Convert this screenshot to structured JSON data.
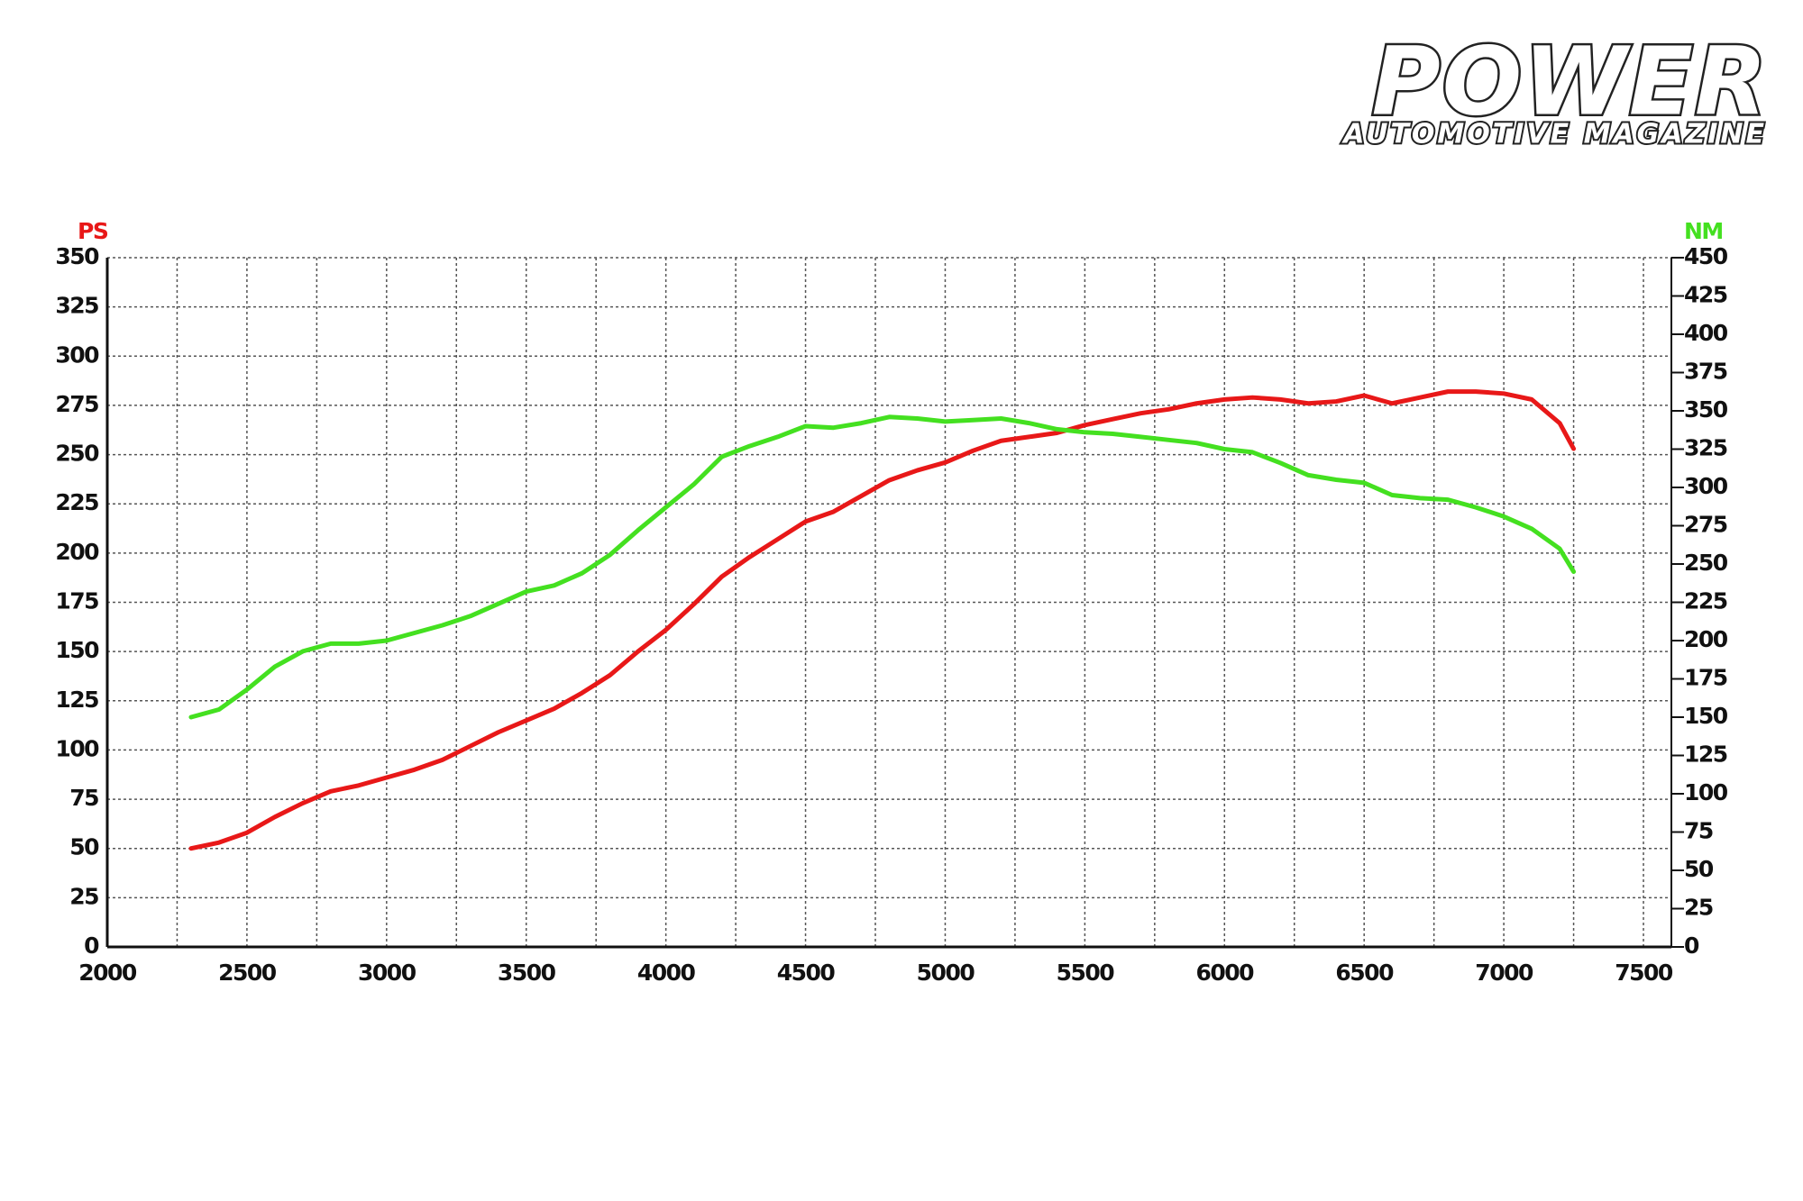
{
  "brand": {
    "name": "POWER",
    "tagline": "AUTOMOTIVE MAGAZINE"
  },
  "chart_data": {
    "type": "line",
    "ylabel": "PS",
    "y2label": "NM",
    "x": [
      2300,
      2400,
      2500,
      2600,
      2700,
      2800,
      2900,
      3000,
      3100,
      3200,
      3300,
      3400,
      3500,
      3600,
      3700,
      3800,
      3900,
      4000,
      4100,
      4200,
      4300,
      4400,
      4500,
      4600,
      4700,
      4800,
      4900,
      5000,
      5100,
      5200,
      5300,
      5400,
      5500,
      5600,
      5700,
      5800,
      5900,
      6000,
      6100,
      6200,
      6300,
      6400,
      6500,
      6600,
      6700,
      6800,
      6900,
      7000,
      7100,
      7200,
      7250
    ],
    "series": [
      {
        "name": "PS",
        "color": "#e81818",
        "axis": "y",
        "values": [
          50,
          53,
          58,
          66,
          73,
          79,
          82,
          86,
          90,
          95,
          102,
          109,
          115,
          121,
          129,
          138,
          150,
          161,
          174,
          188,
          198,
          207,
          216,
          221,
          229,
          237,
          242,
          246,
          252,
          257,
          259,
          261,
          265,
          268,
          271,
          273,
          276,
          278,
          279,
          278,
          276,
          277,
          280,
          276,
          279,
          282,
          282,
          281,
          278,
          266,
          253
        ]
      },
      {
        "name": "NM",
        "color": "#44e020",
        "axis": "y2",
        "values": [
          150,
          155,
          168,
          183,
          193,
          198,
          198,
          200,
          205,
          210,
          216,
          224,
          232,
          236,
          244,
          256,
          272,
          287,
          302,
          320,
          327,
          333,
          340,
          339,
          342,
          346,
          345,
          343,
          344,
          345,
          342,
          338,
          336,
          335,
          333,
          331,
          329,
          325,
          323,
          316,
          308,
          305,
          303,
          295,
          293,
          292,
          287,
          281,
          273,
          260,
          245
        ]
      }
    ],
    "xlim": [
      2000,
      7600
    ],
    "xticks": [
      2000,
      2500,
      3000,
      3500,
      4000,
      4500,
      5000,
      5500,
      6000,
      6500,
      7000,
      7500
    ],
    "xgrid_minor": [
      2250,
      2750,
      3250,
      3750,
      4250,
      4750,
      5250,
      5750,
      6250,
      6750,
      7250
    ],
    "ylim": [
      0,
      350
    ],
    "yticks": [
      0,
      25,
      50,
      75,
      100,
      125,
      150,
      175,
      200,
      225,
      250,
      275,
      300,
      325,
      350
    ],
    "y2lim": [
      0,
      450
    ],
    "y2ticks": [
      0,
      25,
      50,
      75,
      100,
      125,
      150,
      175,
      200,
      225,
      250,
      275,
      300,
      325,
      350,
      375,
      400,
      425,
      450
    ],
    "grid": true
  }
}
